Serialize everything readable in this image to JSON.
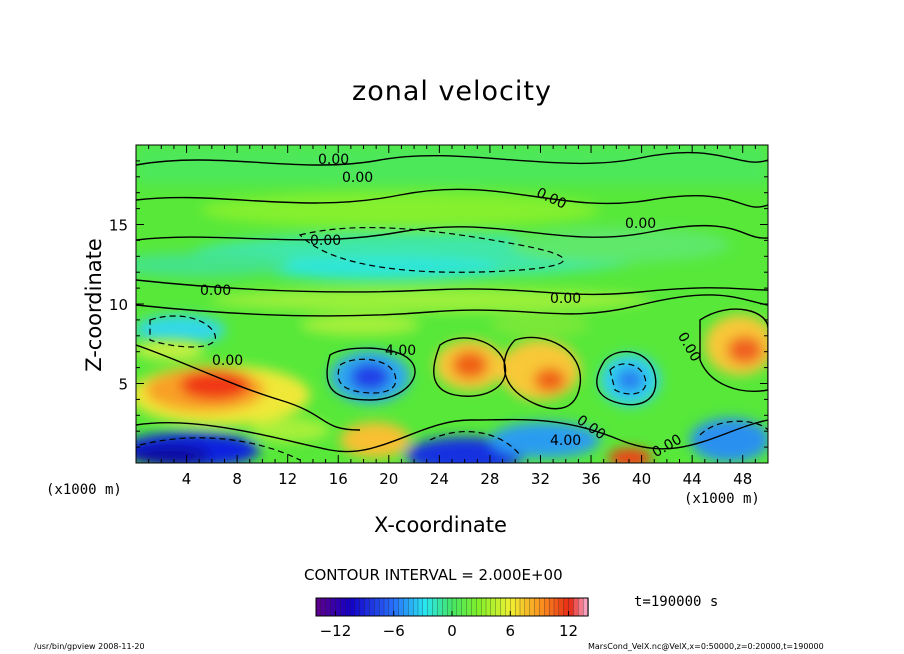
{
  "footer": {
    "left": "/usr/bin/gpview  2008-11-20",
    "right": "MarsCond_VelX.nc@VelX,x=0:50000,z=0:20000,t=190000"
  },
  "contour_interval": "CONTOUR INTERVAL = 2.000E+00",
  "time_label": "t=190000 s",
  "x_unit_left": "(x1000 m)",
  "x_unit_right": "(x1000 m)",
  "contour_value_label": "0.00",
  "contour_value_label_4": "4.00",
  "chart_data": {
    "type": "heatmap",
    "title": "zonal velocity",
    "xlabel": "X-coordinate",
    "ylabel": "Z-coordinate",
    "xlim": [
      0,
      50
    ],
    "ylim": [
      0,
      20
    ],
    "xticks": [
      4,
      8,
      12,
      16,
      20,
      24,
      28,
      32,
      36,
      40,
      44,
      48
    ],
    "yticks": [
      5,
      10,
      15
    ],
    "colorbar": {
      "range": [
        -14,
        14
      ],
      "ticks": [
        -12,
        -6,
        0,
        6,
        12
      ]
    },
    "features": [
      {
        "x": 6,
        "z": 4.5,
        "value": 10
      },
      {
        "x": 7.5,
        "z": 5.2,
        "value": 12
      },
      {
        "x": 2,
        "z": 0.5,
        "value": -12
      },
      {
        "x": 19,
        "z": 5.5,
        "value": -6
      },
      {
        "x": 19,
        "z": 1.2,
        "value": 6
      },
      {
        "x": 26,
        "z": 0.8,
        "value": -10
      },
      {
        "x": 26,
        "z": 6,
        "value": 8
      },
      {
        "x": 33,
        "z": 5.2,
        "value": 8
      },
      {
        "x": 34,
        "z": 1.5,
        "value": -6
      },
      {
        "x": 39.5,
        "z": 0.3,
        "value": 14
      },
      {
        "x": 39,
        "z": 5.5,
        "value": -4
      },
      {
        "x": 47,
        "z": 2,
        "value": -6
      },
      {
        "x": 48,
        "z": 7,
        "value": 8
      },
      {
        "x": 20,
        "z": 13,
        "value": -2
      },
      {
        "x": 13,
        "z": 12,
        "value": -2
      }
    ]
  }
}
